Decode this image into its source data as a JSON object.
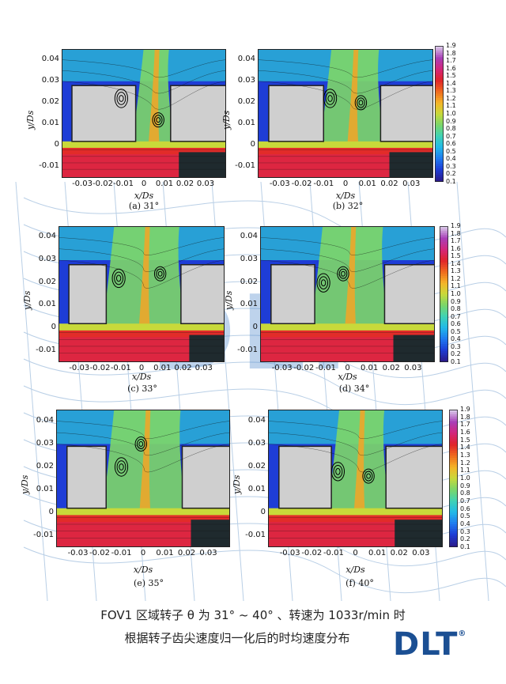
{
  "chart_data": [
    {
      "type": "heatmap",
      "panel_id": "a",
      "caption": "(a) 31°",
      "xlabel": "x/Ds",
      "ylabel": "y/Ds",
      "xlim": [
        -0.04,
        0.04
      ],
      "ylim": [
        -0.015,
        0.045
      ],
      "xticks": [
        "-0.03",
        "-0.02",
        "-0.01",
        "0",
        "0.01",
        "0.02",
        "0.03"
      ],
      "yticks": [
        "0.04",
        "0.03",
        "0.02",
        "0.01",
        "0",
        "-0.01"
      ],
      "colorbar": true,
      "blades": {
        "left_x": [
          -0.035,
          -0.004
        ],
        "right_x": [
          0.013,
          0.04
        ],
        "top_y": 0.028
      },
      "vortices": [
        {
          "x": -0.011,
          "y": 0.022
        },
        {
          "x": 0.007,
          "y": 0.012
        }
      ]
    },
    {
      "type": "heatmap",
      "panel_id": "b",
      "caption": "(b) 32°",
      "xlabel": "x/Ds",
      "ylabel": "y/Ds",
      "xlim": [
        -0.04,
        0.04
      ],
      "ylim": [
        -0.015,
        0.045
      ],
      "xticks": [
        "-0.03",
        "-0.02",
        "-0.01",
        "0",
        "0.01",
        "0.02",
        "0.03"
      ],
      "yticks": [
        "0.04",
        "0.03",
        "0.02",
        "0.01",
        "0",
        "-0.01"
      ],
      "colorbar": true,
      "blades": {
        "left_x": [
          -0.035,
          -0.01
        ],
        "right_x": [
          0.016,
          0.04
        ],
        "top_y": 0.028
      },
      "vortices": [
        {
          "x": -0.007,
          "y": 0.022
        },
        {
          "x": 0.007,
          "y": 0.02
        }
      ]
    },
    {
      "type": "heatmap",
      "panel_id": "c",
      "caption": "(c) 33°",
      "xlabel": "x/Ds",
      "ylabel": "y/Ds",
      "xlim": [
        -0.04,
        0.04
      ],
      "ylim": [
        -0.015,
        0.045
      ],
      "xticks": [
        "-0.03",
        "-0.02",
        "-0.01",
        "0",
        "0.01",
        "0.02",
        "0.03"
      ],
      "yticks": [
        "0.04",
        "0.03",
        "0.02",
        "0.01",
        "0",
        "-0.01"
      ],
      "colorbar": false,
      "blades": {
        "left_x": [
          -0.035,
          -0.017
        ],
        "right_x": [
          0.019,
          0.04
        ],
        "top_y": 0.028
      },
      "vortices": [
        {
          "x": -0.011,
          "y": 0.022
        },
        {
          "x": 0.009,
          "y": 0.024
        }
      ]
    },
    {
      "type": "heatmap",
      "panel_id": "d",
      "caption": "(d) 34°",
      "xlabel": "x/Ds",
      "ylabel": "y/Ds",
      "xlim": [
        -0.04,
        0.04
      ],
      "ylim": [
        -0.015,
        0.045
      ],
      "xticks": [
        "-0.03",
        "-0.02",
        "-0.01",
        "0",
        "0.01",
        "0.02",
        "0.03"
      ],
      "yticks": [
        "0.04",
        "0.03",
        "0.02",
        "0.01",
        "0",
        "-0.01"
      ],
      "colorbar": true,
      "blades": {
        "left_x": [
          -0.035,
          -0.015
        ],
        "right_x": [
          0.017,
          0.04
        ],
        "top_y": 0.028
      },
      "vortices": [
        {
          "x": -0.011,
          "y": 0.02
        },
        {
          "x": -0.002,
          "y": 0.024
        }
      ]
    },
    {
      "type": "heatmap",
      "panel_id": "e",
      "caption": "(e) 35°",
      "xlabel": "x/Ds",
      "ylabel": "y/Ds",
      "xlim": [
        -0.04,
        0.04
      ],
      "ylim": [
        -0.015,
        0.045
      ],
      "xticks": [
        "-0.03",
        "-0.02",
        "-0.01",
        "0",
        "0.01",
        "0.02",
        "0.03"
      ],
      "yticks": [
        "0.04",
        "0.03",
        "0.02",
        "0.01",
        "0",
        "-0.01"
      ],
      "colorbar": false,
      "blades": {
        "left_x": [
          -0.035,
          -0.017
        ],
        "right_x": [
          0.018,
          0.04
        ],
        "top_y": 0.029
      },
      "vortices": [
        {
          "x": -0.01,
          "y": 0.02
        },
        {
          "x": -0.001,
          "y": 0.03
        }
      ]
    },
    {
      "type": "heatmap",
      "panel_id": "f",
      "caption": "(f) 40°",
      "xlabel": "x/Ds",
      "ylabel": "y/Ds",
      "xlim": [
        -0.04,
        0.04
      ],
      "ylim": [
        -0.015,
        0.045
      ],
      "xticks": [
        "-0.03",
        "-0.02",
        "-0.01",
        "0",
        "0.01",
        "0.02",
        "0.03"
      ],
      "yticks": [
        "0.04",
        "0.03",
        "0.02",
        "0.01",
        "0",
        "-0.01"
      ],
      "colorbar": true,
      "blades": {
        "left_x": [
          -0.035,
          -0.011
        ],
        "right_x": [
          0.014,
          0.04
        ],
        "top_y": 0.029
      },
      "vortices": [
        {
          "x": -0.008,
          "y": 0.018
        },
        {
          "x": 0.006,
          "y": 0.016
        }
      ]
    }
  ],
  "colorbar_ticks": [
    "1.9",
    "1.8",
    "1.7",
    "1.6",
    "1.5",
    "1.4",
    "1.3",
    "1.2",
    "1.1",
    "1.0",
    "0.9",
    "0.8",
    "0.7",
    "0.6",
    "0.5",
    "0.4",
    "0.3",
    "0.2",
    "0.1"
  ],
  "colorbar_range": [
    0.1,
    1.9
  ],
  "colormap": [
    "#2a1b8c",
    "#1e3dd6",
    "#1f7bf0",
    "#22b9e8",
    "#3fd3b5",
    "#7ad66a",
    "#c8d93a",
    "#f5b428",
    "#f06a1e",
    "#e0242a",
    "#d4267a",
    "#a83fb8",
    "#d9c6e8"
  ],
  "bottom_text": {
    "line1": "FOV1 区域转子 θ 为 31° ~ 40° 、转速为 1033r/min 时",
    "line2": "根据转子齿尖速度归一化后的时均速度分布"
  },
  "logo": {
    "text": "DLT",
    "mark": "®",
    "color": "#1b4f93"
  },
  "watermark": {
    "text": "DLT"
  }
}
